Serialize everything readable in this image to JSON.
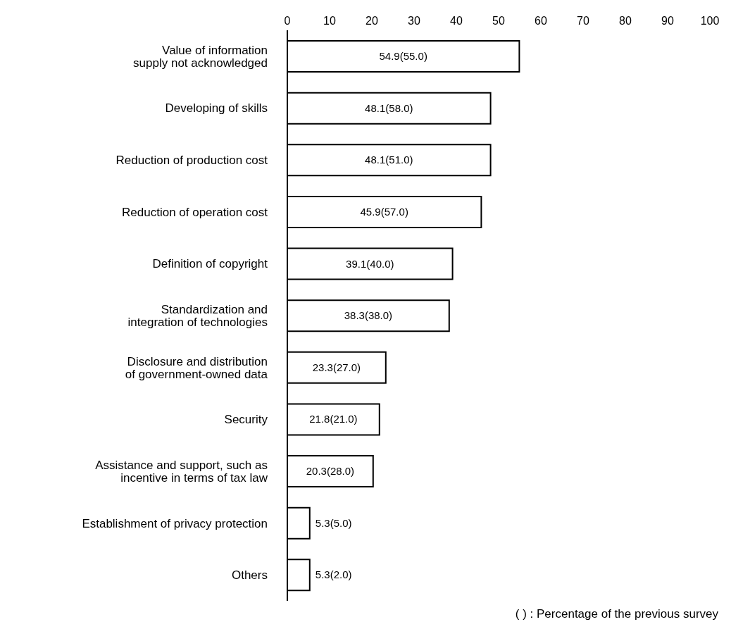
{
  "chart_data": {
    "type": "bar",
    "orientation": "horizontal",
    "categories": [
      "Value of information supply not acknowledged",
      "Developing of skills",
      "Reduction of production cost",
      "Reduction of operation cost",
      "Definition of copyright",
      "Standardization and integration of technologies",
      "Disclosure and distribution of government-owned data",
      "Security",
      "Assistance and support, such as incentive in terms of tax law",
      "Establishment of privacy protection",
      "Others"
    ],
    "values": [
      54.9,
      48.1,
      48.1,
      45.9,
      39.1,
      38.3,
      23.3,
      21.8,
      20.3,
      5.3,
      5.3
    ],
    "value_labels": [
      "54.9(55.0)",
      "48.1(58.0)",
      "48.1(51.0)",
      "45.9(57.0)",
      "39.1(40.0)",
      "38.3(38.0)",
      "23.3(27.0)",
      "21.8(21.0)",
      "20.3(28.0)",
      "5.3(5.0)",
      "5.3(2.0)"
    ],
    "color": "#ffffff",
    "xlim": [
      0,
      100
    ],
    "xticks": [
      0,
      10,
      20,
      30,
      40,
      50,
      60,
      70,
      80,
      90,
      100
    ],
    "annotations": [
      "(   ) :  Percentage of the previous survey"
    ]
  }
}
